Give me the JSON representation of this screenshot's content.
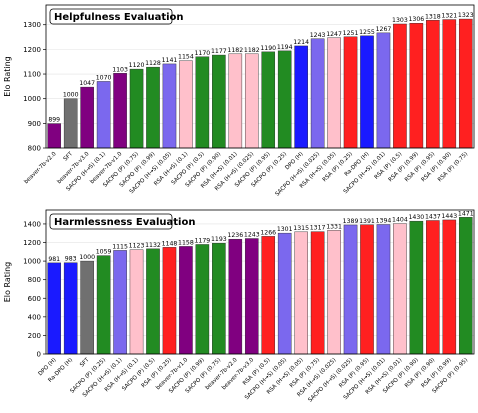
{
  "chart_data": [
    {
      "type": "bar",
      "title": "Helpfulness Evaluation",
      "ylabel": "Elo Rating",
      "categories": [
        "beaver-7b-v2.0",
        "SFT",
        "beaver-7b-v3.0",
        "SACPO (H→S) (0.1)",
        "beaver-7b-v1.0",
        "SACPO (P) (0.75)",
        "SACPO (P) (0.99)",
        "SACPO (H→S) (0.05)",
        "RSA (H→S) (0.1)",
        "SACPO (P) (0.5)",
        "SACPO (P) (0.90)",
        "RSA (H→S) (0.01)",
        "RSA (H→S) (0.025)",
        "SACPO (P) (0.95)",
        "SACPO (P) (0.25)",
        "DPO (H)",
        "SACPO (H→S) (0.025)",
        "RSA (H→S) (0.05)",
        "RSA (P) (0.25)",
        "Ra-DPO (H)",
        "SACPO (H→S) (0.01)",
        "RSA (P) (0.5)",
        "RSA (P) (0.99)",
        "RSA (P) (0.95)",
        "RSA (P) (0.90)",
        "RSA (P) (0.75)"
      ],
      "values": [
        899,
        1000,
        1047,
        1070,
        1103,
        1120,
        1128,
        1141,
        1154,
        1170,
        1177,
        1182,
        1182,
        1190,
        1194,
        1214,
        1243,
        1247,
        1251,
        1255,
        1267,
        1303,
        1306,
        1318,
        1321,
        1323
      ],
      "colors": [
        "#800080",
        "#707070",
        "#800080",
        "#7b68ee",
        "#800080",
        "#228b22",
        "#228b22",
        "#7b68ee",
        "#ffc0cb",
        "#228b22",
        "#228b22",
        "#ffc0cb",
        "#ffc0cb",
        "#228b22",
        "#228b22",
        "#1a1aff",
        "#7b68ee",
        "#ffc0cb",
        "#ff2020",
        "#1a1aff",
        "#7b68ee",
        "#ff2020",
        "#ff2020",
        "#ff2020",
        "#ff2020",
        "#ff2020"
      ],
      "ylim": [
        800,
        1380
      ],
      "yticks": [
        800,
        900,
        1000,
        1100,
        1200,
        1300
      ],
      "grid": true
    },
    {
      "type": "bar",
      "title": "Harmlessness Evaluation",
      "ylabel": "Elo Rating",
      "categories": [
        "DPO (H)",
        "Ra-DPO (H)",
        "SFT",
        "SACPO (P) (0.25)",
        "SACPO (H→S) (0.1)",
        "RSA (H→S) (0.1)",
        "SACPO (P) (0.5)",
        "RSA (P) (0.25)",
        "beaver-7b-v1.0",
        "SACPO (P) (0.99)",
        "SACPO (P) (0.75)",
        "beaver-7b-v2.0",
        "beaver-7b-v3.0",
        "RSA (P) (0.5)",
        "SACPO (H→S) (0.05)",
        "RSA (H→S) (0.05)",
        "RSA (P) (0.75)",
        "RSA (H→S) (0.025)",
        "SACPO (H→S) (0.025)",
        "RSA (P) (0.95)",
        "SACPO (H→S) (0.01)",
        "RSA (H→S) (0.01)",
        "SACPO (P) (0.90)",
        "RSA (P) (0.90)",
        "RSA (P) (0.99)",
        "SACPO (P) (0.95)"
      ],
      "values": [
        981,
        983,
        1000,
        1059,
        1115,
        1123,
        1132,
        1148,
        1158,
        1179,
        1193,
        1236,
        1243,
        1266,
        1301,
        1315,
        1317,
        1331,
        1389,
        1391,
        1394,
        1404,
        1430,
        1437,
        1443,
        1471
      ],
      "colors": [
        "#1a1aff",
        "#1a1aff",
        "#707070",
        "#228b22",
        "#7b68ee",
        "#ffc0cb",
        "#228b22",
        "#ff2020",
        "#800080",
        "#228b22",
        "#228b22",
        "#800080",
        "#800080",
        "#ff2020",
        "#7b68ee",
        "#ffc0cb",
        "#ff2020",
        "#ffc0cb",
        "#7b68ee",
        "#ff2020",
        "#7b68ee",
        "#ffc0cb",
        "#228b22",
        "#ff2020",
        "#ff2020",
        "#228b22"
      ],
      "ylim": [
        0,
        1550
      ],
      "yticks": [
        0,
        200,
        400,
        600,
        800,
        1000,
        1200,
        1400
      ],
      "grid": true
    }
  ]
}
